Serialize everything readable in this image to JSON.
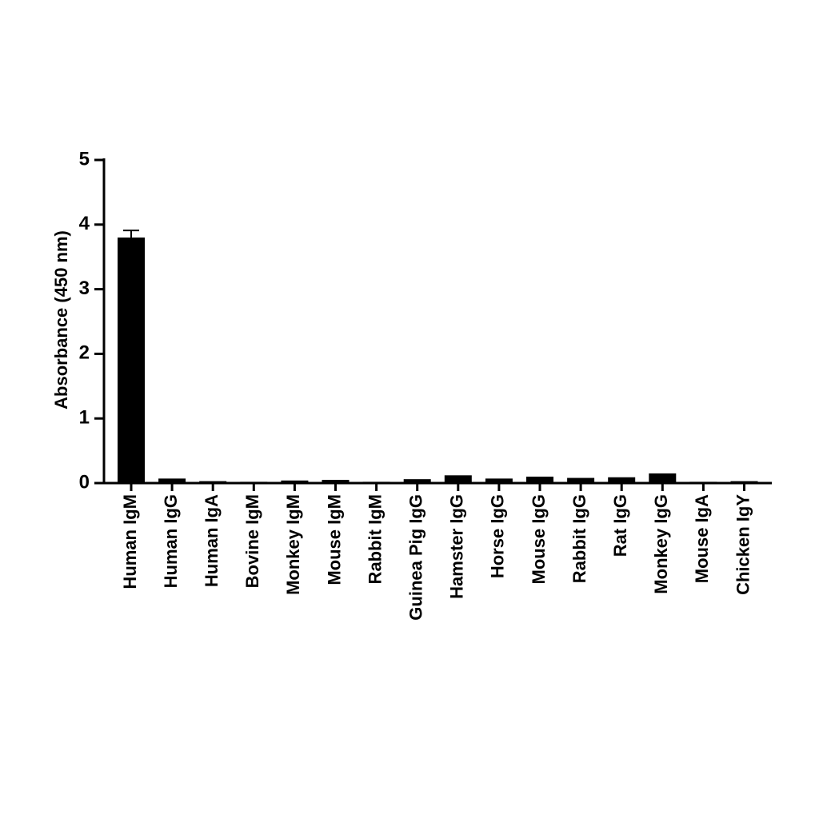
{
  "chart_data": {
    "type": "bar",
    "y_label": "Absorbance (450 nm)",
    "categories": [
      "Human IgM",
      "Human IgG",
      "Human IgA",
      "Bovine IgM",
      "Monkey IgM",
      "Mouse IgM",
      "Rabbit IgM",
      "Guinea Pig IgG",
      "Hamster IgG",
      "Horse IgG",
      "Mouse IgG",
      "Rabbit IgG",
      "Rat IgG",
      "Monkey IgG",
      "Mouse IgA",
      "Chicken IgY"
    ],
    "values": [
      3.8,
      0.07,
      0.03,
      0.02,
      0.04,
      0.05,
      0.02,
      0.06,
      0.12,
      0.07,
      0.1,
      0.08,
      0.09,
      0.15,
      0.02,
      0.03
    ],
    "errors": [
      0.11,
      null,
      null,
      null,
      null,
      null,
      null,
      null,
      null,
      null,
      null,
      null,
      null,
      null,
      null,
      null
    ],
    "color": "#000000",
    "ylim": [
      0,
      5
    ],
    "yticks": [
      0,
      1,
      2,
      3,
      4,
      5
    ],
    "grid": false
  }
}
